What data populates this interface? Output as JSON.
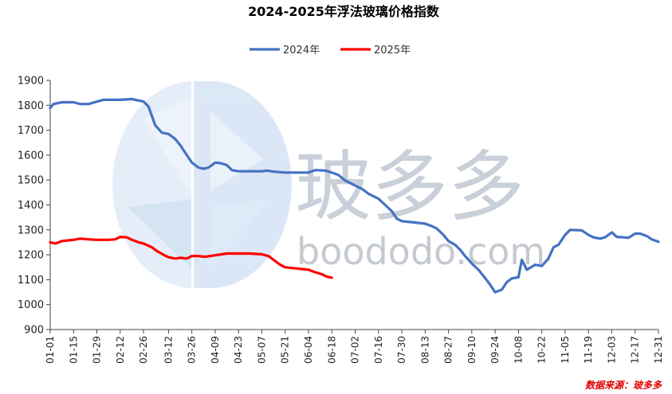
{
  "chart_data": {
    "type": "line",
    "title": "2024-2025年浮法玻璃价格指数",
    "xlabel": "",
    "ylabel": "",
    "ylim": [
      900,
      1900
    ],
    "yticks": [
      900,
      1000,
      1100,
      1200,
      1300,
      1400,
      1500,
      1600,
      1700,
      1800,
      1900
    ],
    "x_ticks": [
      "01-01",
      "01-15",
      "01-29",
      "02-12",
      "02-26",
      "03-12",
      "03-26",
      "04-09",
      "04-23",
      "05-07",
      "05-21",
      "06-04",
      "06-18",
      "07-02",
      "07-16",
      "07-30",
      "08-13",
      "08-27",
      "09-10",
      "09-24",
      "10-08",
      "10-22",
      "11-05",
      "11-19",
      "12-03",
      "12-17",
      "12-31"
    ],
    "grid": false,
    "legend_position": "top-center",
    "series": [
      {
        "name": "2024年",
        "color": "#4472C4",
        "points": [
          [
            "01-01",
            1790
          ],
          [
            "01-03",
            1805
          ],
          [
            "01-08",
            1812
          ],
          [
            "01-15",
            1812
          ],
          [
            "01-19",
            1805
          ],
          [
            "01-24",
            1805
          ],
          [
            "01-29",
            1815
          ],
          [
            "02-02",
            1822
          ],
          [
            "02-12",
            1822
          ],
          [
            "02-19",
            1825
          ],
          [
            "02-26",
            1815
          ],
          [
            "02-29",
            1795
          ],
          [
            "03-04",
            1720
          ],
          [
            "03-08",
            1690
          ],
          [
            "03-12",
            1685
          ],
          [
            "03-16",
            1665
          ],
          [
            "03-19",
            1640
          ],
          [
            "03-22",
            1610
          ],
          [
            "03-26",
            1570
          ],
          [
            "03-30",
            1550
          ],
          [
            "04-02",
            1545
          ],
          [
            "04-05",
            1550
          ],
          [
            "04-09",
            1570
          ],
          [
            "04-12",
            1568
          ],
          [
            "04-16",
            1560
          ],
          [
            "04-19",
            1540
          ],
          [
            "04-23",
            1535
          ],
          [
            "05-07",
            1535
          ],
          [
            "05-10",
            1538
          ],
          [
            "05-14",
            1534
          ],
          [
            "05-21",
            1530
          ],
          [
            "05-28",
            1530
          ],
          [
            "06-04",
            1530
          ],
          [
            "06-08",
            1540
          ],
          [
            "06-14",
            1538
          ],
          [
            "06-18",
            1530
          ],
          [
            "06-22",
            1520
          ],
          [
            "06-26",
            1498
          ],
          [
            "07-02",
            1478
          ],
          [
            "07-06",
            1465
          ],
          [
            "07-10",
            1445
          ],
          [
            "07-16",
            1425
          ],
          [
            "07-20",
            1400
          ],
          [
            "07-24",
            1375
          ],
          [
            "07-27",
            1345
          ],
          [
            "07-30",
            1335
          ],
          [
            "08-06",
            1330
          ],
          [
            "08-13",
            1325
          ],
          [
            "08-17",
            1315
          ],
          [
            "08-20",
            1305
          ],
          [
            "08-24",
            1280
          ],
          [
            "08-27",
            1255
          ],
          [
            "08-31",
            1240
          ],
          [
            "09-03",
            1220
          ],
          [
            "09-06",
            1195
          ],
          [
            "09-10",
            1165
          ],
          [
            "09-14",
            1140
          ],
          [
            "09-17",
            1115
          ],
          [
            "09-21",
            1080
          ],
          [
            "09-24",
            1050
          ],
          [
            "09-28",
            1060
          ],
          [
            "10-01",
            1090
          ],
          [
            "10-04",
            1105
          ],
          [
            "10-08",
            1110
          ],
          [
            "10-10",
            1180
          ],
          [
            "10-13",
            1140
          ],
          [
            "10-18",
            1160
          ],
          [
            "10-22",
            1155
          ],
          [
            "10-26",
            1185
          ],
          [
            "10-29",
            1230
          ],
          [
            "11-01",
            1240
          ],
          [
            "11-05",
            1280
          ],
          [
            "11-08",
            1300
          ],
          [
            "11-15",
            1298
          ],
          [
            "11-19",
            1280
          ],
          [
            "11-22",
            1270
          ],
          [
            "11-26",
            1265
          ],
          [
            "11-29",
            1270
          ],
          [
            "12-03",
            1290
          ],
          [
            "12-06",
            1272
          ],
          [
            "12-10",
            1270
          ],
          [
            "12-13",
            1268
          ],
          [
            "12-17",
            1285
          ],
          [
            "12-20",
            1285
          ],
          [
            "12-24",
            1275
          ],
          [
            "12-27",
            1262
          ],
          [
            "12-31",
            1252
          ]
        ]
      },
      {
        "name": "2025年",
        "color": "#FF0000",
        "points": [
          [
            "01-01",
            1250
          ],
          [
            "01-04",
            1245
          ],
          [
            "01-08",
            1255
          ],
          [
            "01-15",
            1260
          ],
          [
            "01-19",
            1265
          ],
          [
            "01-24",
            1262
          ],
          [
            "01-29",
            1260
          ],
          [
            "02-05",
            1260
          ],
          [
            "02-09",
            1262
          ],
          [
            "02-12",
            1272
          ],
          [
            "02-16",
            1270
          ],
          [
            "02-19",
            1260
          ],
          [
            "02-23",
            1250
          ],
          [
            "02-26",
            1245
          ],
          [
            "03-02",
            1230
          ],
          [
            "03-05",
            1215
          ],
          [
            "03-09",
            1200
          ],
          [
            "03-12",
            1190
          ],
          [
            "03-16",
            1185
          ],
          [
            "03-19",
            1188
          ],
          [
            "03-23",
            1185
          ],
          [
            "03-26",
            1195
          ],
          [
            "03-30",
            1195
          ],
          [
            "04-03",
            1192
          ],
          [
            "04-09",
            1198
          ],
          [
            "04-16",
            1205
          ],
          [
            "04-23",
            1205
          ],
          [
            "04-30",
            1205
          ],
          [
            "05-07",
            1202
          ],
          [
            "05-11",
            1195
          ],
          [
            "05-14",
            1180
          ],
          [
            "05-18",
            1160
          ],
          [
            "05-21",
            1150
          ],
          [
            "05-28",
            1145
          ],
          [
            "06-04",
            1140
          ],
          [
            "06-08",
            1130
          ],
          [
            "06-12",
            1122
          ],
          [
            "06-15",
            1112
          ],
          [
            "06-18",
            1108
          ]
        ]
      }
    ]
  },
  "watermark": {
    "cn_text": "玻多多",
    "en_text": "boododo.com"
  },
  "source_note": "数据来源：玻多多"
}
